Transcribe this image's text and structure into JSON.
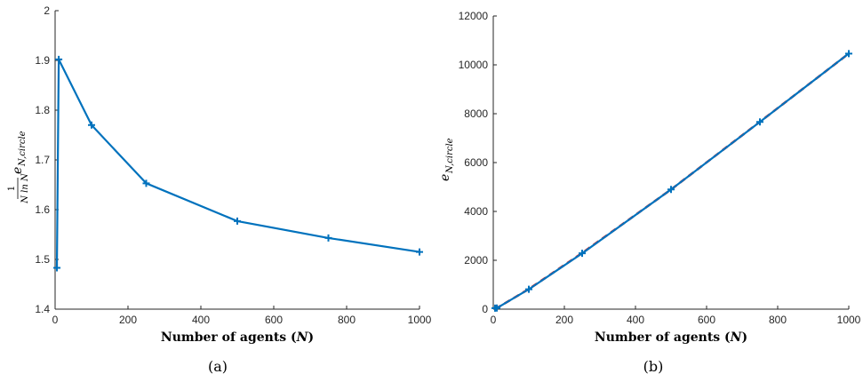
{
  "chart_data": [
    {
      "type": "line",
      "caption": "(a)",
      "xlabel": "Number of agents (N)",
      "xlabel_main": "Number of agents (",
      "xlabel_var": "N",
      "xlabel_close": ")",
      "ylabel": "1/(N ln N) e_{N,circle}",
      "ylabel_num": "1",
      "ylabel_den": "N ln N",
      "ylabel_e": "e",
      "ylabel_sub": "N,circle",
      "xlim": [
        0,
        1000
      ],
      "ylim": [
        1.4,
        2.0
      ],
      "xticks": [
        0,
        200,
        400,
        600,
        800,
        1000
      ],
      "yticks": [
        1.4,
        1.5,
        1.6,
        1.7,
        1.8,
        1.9,
        2.0
      ],
      "ytick_labels": [
        "1.4",
        "1.5",
        "1.6",
        "1.7",
        "1.8",
        "1.9",
        "2"
      ],
      "series": [
        {
          "color": "#0072bd",
          "marker": "+",
          "x": [
            5,
            10,
            100,
            250,
            500,
            750,
            1000
          ],
          "y": [
            1.483,
            1.902,
            1.77,
            1.653,
            1.577,
            1.543,
            1.515
          ]
        }
      ]
    },
    {
      "type": "line",
      "caption": "(b)",
      "xlabel": "Number of agents (N)",
      "xlabel_main": "Number of agents (",
      "xlabel_var": "N",
      "xlabel_close": ")",
      "ylabel": "e_{N,circle}",
      "ylabel_e": "e",
      "ylabel_sub": "N,circle",
      "xlim": [
        0,
        1000
      ],
      "ylim": [
        0,
        12000
      ],
      "xticks": [
        0,
        200,
        400,
        600,
        800,
        1000
      ],
      "yticks": [
        0,
        2000,
        4000,
        6000,
        8000,
        10000,
        12000
      ],
      "ytick_labels": [
        "0",
        "2000",
        "4000",
        "6000",
        "8000",
        "10000",
        "12000"
      ],
      "series": [
        {
          "color": "#d62728",
          "style": "dashed",
          "x": [
            5,
            10,
            100,
            250,
            500,
            750,
            1000
          ],
          "y": [
            40,
            45,
            820,
            2300,
            4900,
            7670,
            10460
          ]
        },
        {
          "color": "#0072bd",
          "marker": "+",
          "x": [
            5,
            10,
            100,
            250,
            500,
            750,
            1000
          ],
          "y": [
            40,
            45,
            815,
            2285,
            4900,
            7665,
            10460
          ]
        }
      ]
    }
  ]
}
